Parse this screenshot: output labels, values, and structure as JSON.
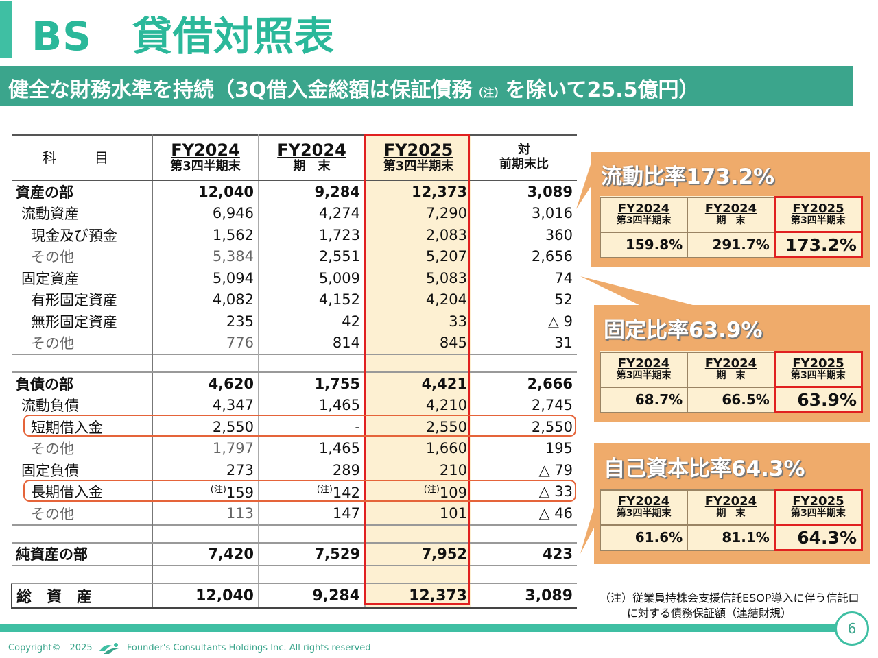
{
  "title": "BS　貸借対照表",
  "subtitle": {
    "main": "健全な財務水準を持続（3Q借入金総額は保証債務",
    "note": "（注）",
    "tail": "を除いて25.5億円）"
  },
  "table": {
    "headers": {
      "subject": "科　目",
      "col1_fy": "FY2024",
      "col1_sub": "第3四半期末",
      "col2_fy": "FY2024",
      "col2_sub": "期　末",
      "col3_fy": "FY2025",
      "col3_sub": "第3四半期末",
      "diff_line1": "対",
      "diff_line2": "前期末比"
    },
    "rows": [
      {
        "label": "資産の部",
        "v1": "12,040",
        "v2": "9,284",
        "v3": "12,373",
        "v4": "3,089"
      },
      {
        "label": "流動資産",
        "v1": "6,946",
        "v2": "4,274",
        "v3": "7,290",
        "v4": "3,016"
      },
      {
        "label": "現金及び預金",
        "v1": "1,562",
        "v2": "1,723",
        "v3": "2,083",
        "v4": "360"
      },
      {
        "label": "その他",
        "v1": "5,384",
        "v2": "2,551",
        "v3": "5,207",
        "v4": "2,656"
      },
      {
        "label": "固定資産",
        "v1": "5,094",
        "v2": "5,009",
        "v3": "5,083",
        "v4": "74"
      },
      {
        "label": "有形固定資産",
        "v1": "4,082",
        "v2": "4,152",
        "v3": "4,204",
        "v4": "52"
      },
      {
        "label": "無形固定資産",
        "v1": "235",
        "v2": "42",
        "v3": "33",
        "v4": "△ 9"
      },
      {
        "label": "その他",
        "v1": "776",
        "v2": "814",
        "v3": "845",
        "v4": "31"
      },
      {
        "label": "負債の部",
        "v1": "4,620",
        "v2": "1,755",
        "v3": "4,421",
        "v4": "2,666"
      },
      {
        "label": "流動負債",
        "v1": "4,347",
        "v2": "1,465",
        "v3": "4,210",
        "v4": "2,745"
      },
      {
        "label": "短期借入金",
        "v1": "2,550",
        "v2": "-",
        "v3": "2,550",
        "v4": "2,550"
      },
      {
        "label": "その他",
        "v1": "1,797",
        "v2": "1,465",
        "v3": "1,660",
        "v4": "195"
      },
      {
        "label": "固定負債",
        "v1": "273",
        "v2": "289",
        "v3": "210",
        "v4": "△ 79"
      },
      {
        "label": "長期借入金",
        "note": "(注)",
        "v1": "159",
        "v2": "142",
        "v3": "109",
        "v4": "△ 33"
      },
      {
        "label": "その他",
        "v1": "113",
        "v2": "147",
        "v3": "101",
        "v4": "△ 46"
      },
      {
        "label": "純資産の部",
        "v1": "7,420",
        "v2": "7,529",
        "v3": "7,952",
        "v4": "423"
      },
      {
        "label": "総　資　産",
        "v1": "12,040",
        "v2": "9,284",
        "v3": "12,373",
        "v4": "3,089"
      }
    ]
  },
  "ratios": [
    {
      "title": "流動比率173.2%",
      "headers": [
        {
          "fy": "FY2024",
          "sub": "第3四半期末"
        },
        {
          "fy": "FY2024",
          "sub": "期　末"
        },
        {
          "fy": "FY2025",
          "sub": "第3四半期末"
        }
      ],
      "values": [
        "159.8%",
        "291.7%",
        "173.2%"
      ]
    },
    {
      "title": "固定比率63.9%",
      "headers": [
        {
          "fy": "FY2024",
          "sub": "第3四半期末"
        },
        {
          "fy": "FY2024",
          "sub": "期　末"
        },
        {
          "fy": "FY2025",
          "sub": "第3四半期末"
        }
      ],
      "values": [
        "68.7%",
        "66.5%",
        "63.9%"
      ]
    },
    {
      "title": "自己資本比率64.3%",
      "headers": [
        {
          "fy": "FY2024",
          "sub": "第3四半期末"
        },
        {
          "fy": "FY2024",
          "sub": "期　末"
        },
        {
          "fy": "FY2025",
          "sub": "第3四半期末"
        }
      ],
      "values": [
        "61.6%",
        "81.1%",
        "64.3%"
      ]
    }
  ],
  "footnote": {
    "line1": "（注）従業員持株会支援信託ESOP導入に伴う信託口",
    "line2": "に対する債務保証額（連結財規）"
  },
  "page_number": "6",
  "copyright": {
    "left": "Copyright©　2025",
    "right": "Founder's Consultants Holdings Inc.  All rights reserved"
  },
  "colors": {
    "accent": "#3fbfa3",
    "band": "#3ba58c",
    "callout": "#efab6b",
    "highlight": "#e02020"
  }
}
